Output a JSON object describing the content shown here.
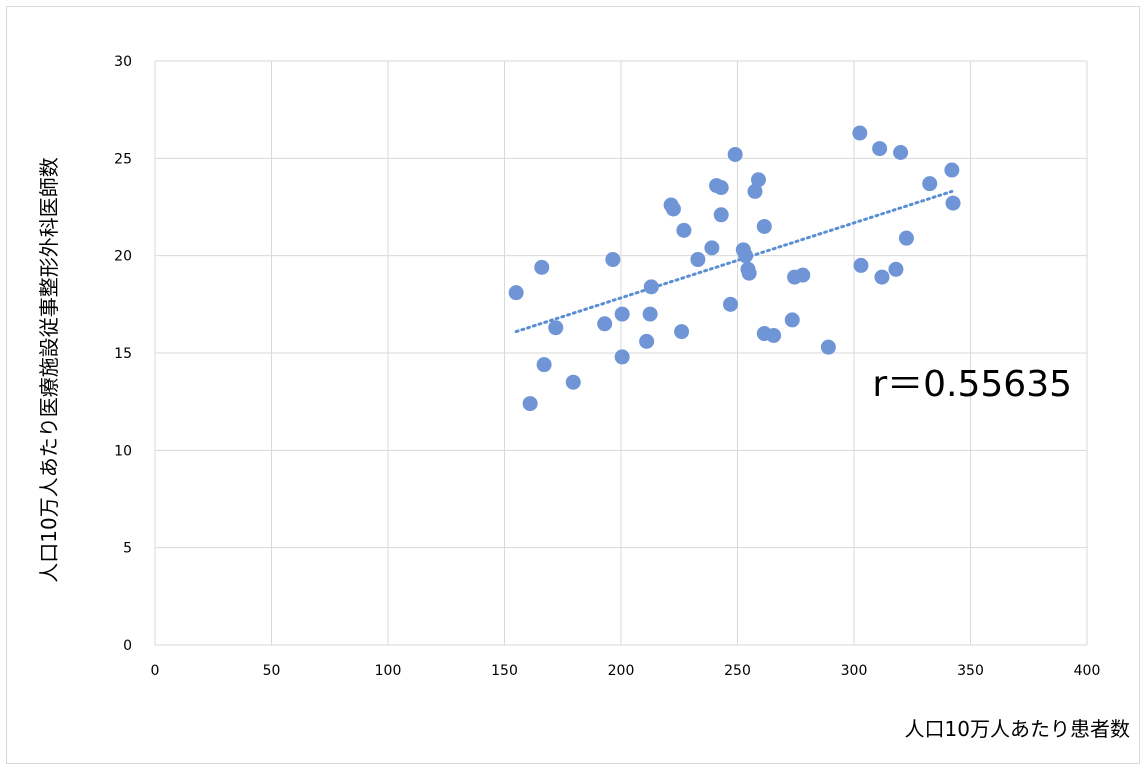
{
  "chart_data": {
    "type": "scatter",
    "title": "",
    "xlabel": "人口10万人あたり患者数",
    "ylabel": "人口10万人あたり医療施設従事整形外科医師数",
    "xlim": [
      0,
      400
    ],
    "ylim": [
      0,
      30
    ],
    "x_ticks": [
      0,
      50,
      100,
      150,
      200,
      250,
      300,
      350,
      400
    ],
    "y_ticks": [
      0,
      5,
      10,
      15,
      20,
      25,
      30
    ],
    "grid": true,
    "legend": "none",
    "annotation": "r＝0.55635",
    "trendline": {
      "style": "dotted",
      "x": [
        155,
        342
      ],
      "y": [
        16.1,
        23.3
      ]
    },
    "colors": {
      "points": "#6f95d6",
      "trendline": "#5b8fd3",
      "grid": "#d9d9d9"
    },
    "series": [
      {
        "x": [
          155,
          161,
          166,
          167,
          172,
          179.5,
          193,
          196.5,
          200.5,
          200.5,
          211,
          212.5,
          213,
          221.5,
          222.5,
          226,
          227,
          233,
          239,
          241,
          243,
          243,
          247,
          249,
          252.5,
          253.5,
          254.5,
          255,
          257.5,
          259,
          261.5,
          261.5,
          265.5,
          273.5,
          274.5,
          278,
          289,
          302.5,
          303,
          311,
          312,
          318,
          320,
          322.5,
          332.5,
          342,
          342.5
        ],
        "y": [
          18.1,
          12.4,
          19.4,
          14.4,
          16.3,
          13.5,
          16.5,
          19.8,
          14.8,
          17.0,
          15.6,
          17.0,
          18.4,
          22.6,
          22.4,
          16.1,
          21.3,
          19.8,
          20.4,
          23.6,
          22.1,
          23.5,
          17.5,
          25.2,
          20.3,
          20.0,
          19.3,
          19.1,
          23.3,
          23.9,
          16.0,
          21.5,
          15.9,
          16.7,
          18.9,
          19.0,
          15.3,
          26.3,
          19.5,
          25.5,
          18.9,
          19.3,
          25.3,
          20.9,
          23.7,
          24.4,
          22.7
        ]
      }
    ]
  }
}
